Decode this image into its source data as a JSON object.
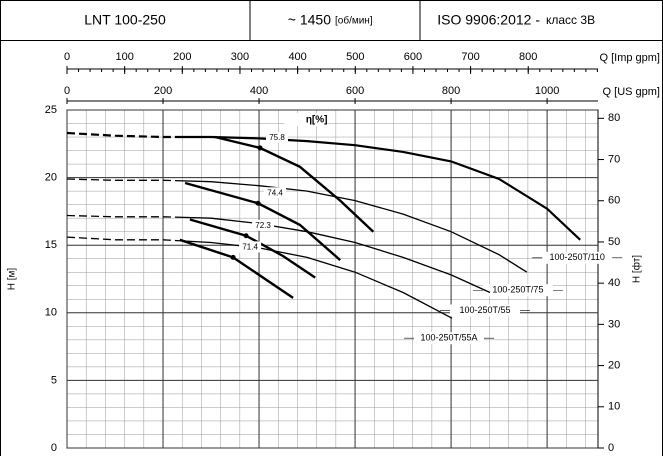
{
  "header": {
    "model": "LNT 100-250",
    "speed": "~ 1450",
    "speed_unit": "[об/мин]",
    "standard": "ISO 9906:2012 -",
    "class": "класс 3В"
  },
  "chart_data": {
    "type": "line",
    "xlabel": "Q [US gpm]",
    "x2label": "Q [Imp gpm]",
    "ylabel": "H [м]",
    "y2label": "H [фт]",
    "xlim": [
      0,
      1106
    ],
    "xticks": [
      0,
      200,
      400,
      600,
      800,
      1000
    ],
    "x2lim": [
      0,
      921
    ],
    "x2ticks": [
      0,
      100,
      200,
      300,
      400,
      500,
      600,
      700,
      800
    ],
    "ylim": [
      0,
      25
    ],
    "yticks": [
      0,
      5,
      10,
      15,
      20,
      25
    ],
    "y2lim": [
      0,
      82.02
    ],
    "y2ticks": [
      0,
      10,
      20,
      30,
      40,
      50,
      60,
      70,
      80
    ],
    "grid": true,
    "series": [
      {
        "name": "100-250T/110",
        "color": "#000",
        "x": [
          0,
          100,
          200,
          300,
          400,
          500,
          600,
          700,
          800,
          900,
          1000,
          1069
        ],
        "values": [
          23.3,
          23.1,
          23.0,
          23.0,
          22.9,
          22.7,
          22.4,
          21.9,
          21.2,
          19.9,
          17.7,
          15.4
        ]
      },
      {
        "name": "100-250T/75",
        "color": "#000",
        "x": [
          0,
          100,
          200,
          300,
          400,
          500,
          600,
          700,
          800,
          900,
          958
        ],
        "values": [
          19.9,
          19.8,
          19.8,
          19.7,
          19.4,
          19.0,
          18.3,
          17.3,
          16.0,
          14.3,
          13.0
        ]
      },
      {
        "name": "100-250T/55",
        "color": "#000",
        "x": [
          0,
          100,
          200,
          300,
          400,
          500,
          600,
          700,
          800,
          881
        ],
        "values": [
          17.2,
          17.1,
          17.1,
          17.0,
          16.6,
          16.0,
          15.2,
          14.1,
          12.8,
          11.5
        ]
      },
      {
        "name": "100-250T/55A",
        "color": "#000",
        "x": [
          0,
          100,
          200,
          300,
          400,
          500,
          600,
          700,
          802
        ],
        "values": [
          15.6,
          15.4,
          15.4,
          15.2,
          14.8,
          14.1,
          13.0,
          11.5,
          9.6
        ]
      }
    ],
    "efficiency_title": "η[%]",
    "efficiency_curves": [
      {
        "label": "75.8",
        "x": [
          308,
          402,
          485,
          569,
          638
        ],
        "values": [
          23.0,
          22.2,
          20.8,
          18.3,
          16.0
        ]
      },
      {
        "label": "74.4",
        "x": [
          246,
          398,
          485,
          569
        ],
        "values": [
          19.6,
          18.1,
          16.5,
          13.9
        ]
      },
      {
        "label": "72.3",
        "x": [
          256,
          373,
          450,
          517
        ],
        "values": [
          16.9,
          15.7,
          14.2,
          12.6
        ]
      },
      {
        "label": "71.4",
        "x": [
          235,
          346,
          471
        ],
        "values": [
          15.4,
          14.1,
          11.1
        ]
      }
    ]
  }
}
